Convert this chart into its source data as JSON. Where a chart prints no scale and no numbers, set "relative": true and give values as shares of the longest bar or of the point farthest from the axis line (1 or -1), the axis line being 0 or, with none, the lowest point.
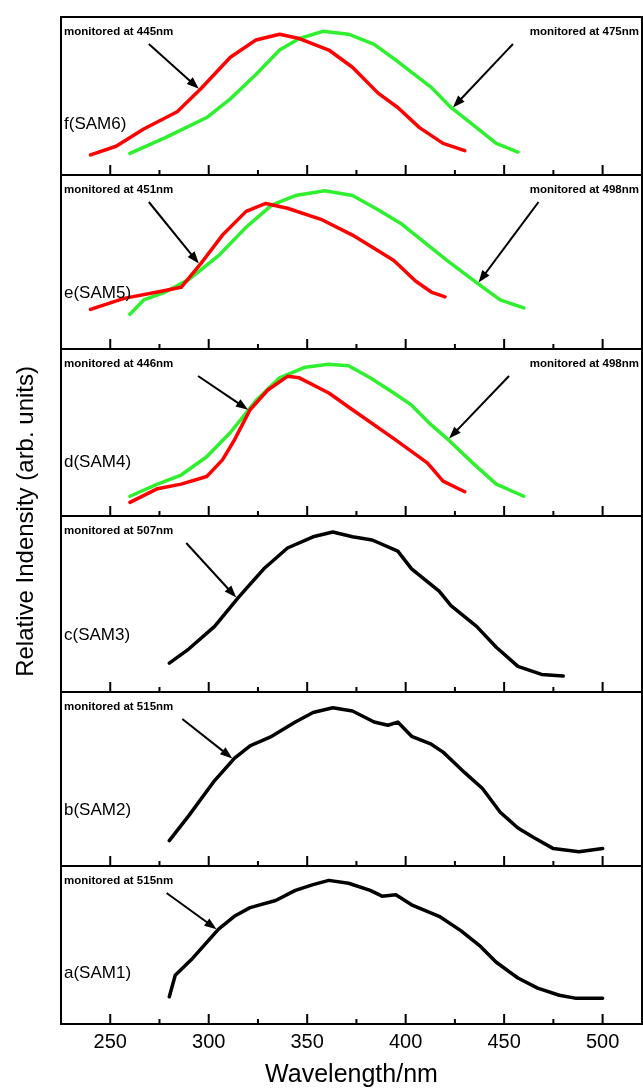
{
  "chart_data": [
    {
      "type": "line",
      "relative": true,
      "xlim": [
        225,
        520
      ],
      "xticks": [
        250,
        {
          "value": 275,
          "label": null
        },
        300,
        {
          "value": 325,
          "label": null
        },
        350,
        {
          "value": 375,
          "label": null
        },
        400,
        {
          "value": 425,
          "label": null
        },
        450,
        {
          "value": 475,
          "label": null
        },
        500
      ],
      "tick_labels": false,
      "legend": false,
      "annotations": [
        "f(SAM6)",
        "monitored at 445nm",
        "monitored at 475nm"
      ],
      "series": [
        {
          "color": "#ff0000",
          "x": [
            240,
            253,
            267,
            284,
            296,
            311,
            324,
            336,
            346,
            361,
            373,
            386,
            396,
            407,
            419,
            430
          ],
          "values": [
            0.14,
            0.2,
            0.32,
            0.44,
            0.6,
            0.82,
            0.94,
            0.98,
            0.95,
            0.87,
            0.75,
            0.57,
            0.47,
            0.33,
            0.22,
            0.17
          ]
        },
        {
          "color": "#2ef02e",
          "x": [
            260,
            278,
            299,
            311,
            324,
            336,
            346,
            358,
            371,
            384,
            396,
            413,
            423,
            436,
            446,
            457
          ],
          "values": [
            0.15,
            0.26,
            0.4,
            0.53,
            0.7,
            0.87,
            0.95,
            1,
            0.98,
            0.91,
            0.79,
            0.61,
            0.47,
            0.33,
            0.22,
            0.16
          ]
        }
      ]
    },
    {
      "type": "line",
      "relative": true,
      "xlim": [
        225,
        520
      ],
      "xticks": [
        250,
        {
          "value": 275,
          "label": null
        },
        300,
        {
          "value": 325,
          "label": null
        },
        350,
        {
          "value": 375,
          "label": null
        },
        400,
        {
          "value": 425,
          "label": null
        },
        450,
        {
          "value": 475,
          "label": null
        },
        500
      ],
      "tick_labels": false,
      "legend": false,
      "annotations": [
        "e(SAM5)",
        "monitored at 451nm",
        "monitored at 498nm"
      ],
      "series": [
        {
          "color": "#ff0000",
          "x": [
            240,
            257,
            274,
            286,
            296,
            307,
            319,
            329,
            340,
            357,
            373,
            394,
            405,
            413,
            420
          ],
          "values": [
            0.25,
            0.32,
            0.36,
            0.39,
            0.54,
            0.72,
            0.87,
            0.92,
            0.89,
            0.82,
            0.72,
            0.56,
            0.43,
            0.36,
            0.33
          ]
        },
        {
          "color": "#2ef02e",
          "x": [
            260,
            267,
            278,
            290,
            305,
            319,
            332,
            344,
            359,
            373,
            386,
            398,
            411,
            421,
            436,
            448,
            460
          ],
          "values": [
            0.22,
            0.31,
            0.36,
            0.44,
            0.59,
            0.77,
            0.91,
            0.97,
            1,
            0.97,
            0.88,
            0.79,
            0.66,
            0.56,
            0.42,
            0.31,
            0.26
          ]
        }
      ]
    },
    {
      "type": "line",
      "relative": true,
      "xlim": [
        225,
        520
      ],
      "xticks": [
        250,
        {
          "value": 275,
          "label": null
        },
        300,
        {
          "value": 325,
          "label": null
        },
        350,
        {
          "value": 375,
          "label": null
        },
        400,
        {
          "value": 425,
          "label": null
        },
        450,
        {
          "value": 475,
          "label": null
        },
        500
      ],
      "tick_labels": false,
      "legend": false,
      "annotations": [
        "d(SAM4)",
        "monitored at 446nm",
        "monitored at 498nm"
      ],
      "series": [
        {
          "color": "#ff0000",
          "x": [
            260,
            274,
            286,
            299,
            307,
            313,
            321,
            330,
            340,
            346,
            361,
            373,
            394,
            411,
            419,
            430
          ],
          "values": [
            0.09,
            0.18,
            0.21,
            0.26,
            0.37,
            0.5,
            0.7,
            0.83,
            0.92,
            0.91,
            0.81,
            0.7,
            0.51,
            0.35,
            0.23,
            0.16
          ]
        },
        {
          "color": "#2ef02e",
          "x": [
            260,
            274,
            286,
            299,
            311,
            324,
            336,
            349,
            361,
            371,
            382,
            394,
            403,
            413,
            421,
            434,
            446,
            460
          ],
          "values": [
            0.13,
            0.21,
            0.27,
            0.39,
            0.55,
            0.76,
            0.91,
            0.98,
            1,
            0.99,
            0.91,
            0.81,
            0.73,
            0.6,
            0.51,
            0.35,
            0.21,
            0.13
          ]
        }
      ]
    },
    {
      "type": "line",
      "relative": true,
      "ylabel": "Relative Indensity (arb. units)",
      "xlim": [
        225,
        520
      ],
      "xticks": [
        250,
        {
          "value": 275,
          "label": null
        },
        300,
        {
          "value": 325,
          "label": null
        },
        350,
        {
          "value": 375,
          "label": null
        },
        400,
        {
          "value": 425,
          "label": null
        },
        450,
        {
          "value": 475,
          "label": null
        },
        500
      ],
      "tick_labels": false,
      "legend": false,
      "annotations": [
        "c(SAM3)",
        "monitored at 507nm"
      ],
      "series": [
        {
          "color": "#000000",
          "x": [
            280,
            290,
            303,
            315,
            328,
            340,
            353,
            363,
            373,
            383,
            396,
            403,
            417,
            423,
            436,
            446,
            457,
            469,
            480
          ],
          "values": [
            0.18,
            0.27,
            0.41,
            0.59,
            0.77,
            0.9,
            0.97,
            1,
            0.97,
            0.95,
            0.88,
            0.77,
            0.63,
            0.54,
            0.41,
            0.28,
            0.16,
            0.11,
            0.1
          ]
        }
      ]
    },
    {
      "type": "line",
      "relative": true,
      "xlim": [
        225,
        520
      ],
      "xticks": [
        250,
        {
          "value": 275,
          "label": null
        },
        300,
        {
          "value": 325,
          "label": null
        },
        350,
        {
          "value": 375,
          "label": null
        },
        400,
        {
          "value": 425,
          "label": null
        },
        450,
        {
          "value": 475,
          "label": null
        },
        500
      ],
      "tick_labels": false,
      "legend": false,
      "annotations": [
        "b(SAM2)",
        "monitored at 515nm"
      ],
      "series": [
        {
          "color": "#000000",
          "x": [
            280,
            290,
            303,
            313,
            321,
            332,
            344,
            353,
            363,
            373,
            384,
            391,
            396,
            403,
            413,
            419,
            430,
            439,
            448,
            457,
            465,
            475,
            488,
            500
          ],
          "values": [
            0.16,
            0.32,
            0.54,
            0.68,
            0.76,
            0.82,
            0.91,
            0.97,
            1,
            0.98,
            0.91,
            0.89,
            0.91,
            0.82,
            0.77,
            0.72,
            0.59,
            0.49,
            0.34,
            0.24,
            0.18,
            0.11,
            0.09,
            0.11
          ]
        }
      ]
    },
    {
      "type": "line",
      "relative": true,
      "xlabel": "Wavelength/nm",
      "xlim": [
        225,
        520
      ],
      "xticks": [
        250,
        {
          "value": 275,
          "label": null
        },
        300,
        {
          "value": 325,
          "label": null
        },
        350,
        {
          "value": 375,
          "label": null
        },
        400,
        {
          "value": 425,
          "label": null
        },
        450,
        {
          "value": 475,
          "label": null
        },
        500
      ],
      "tick_labels": "x",
      "legend": false,
      "annotations": [
        "a(SAM1)",
        "monitored at 515nm"
      ],
      "series": [
        {
          "color": "#000000",
          "x": [
            280,
            283,
            292,
            305,
            313,
            321,
            334,
            344,
            353,
            361,
            371,
            382,
            388,
            395,
            403,
            417,
            428,
            438,
            446,
            457,
            467,
            478,
            486,
            500
          ],
          "values": [
            0.19,
            0.34,
            0.46,
            0.66,
            0.75,
            0.81,
            0.86,
            0.93,
            0.97,
            1,
            0.98,
            0.93,
            0.89,
            0.9,
            0.83,
            0.75,
            0.65,
            0.54,
            0.43,
            0.32,
            0.25,
            0.2,
            0.18,
            0.18
          ]
        }
      ]
    }
  ]
}
